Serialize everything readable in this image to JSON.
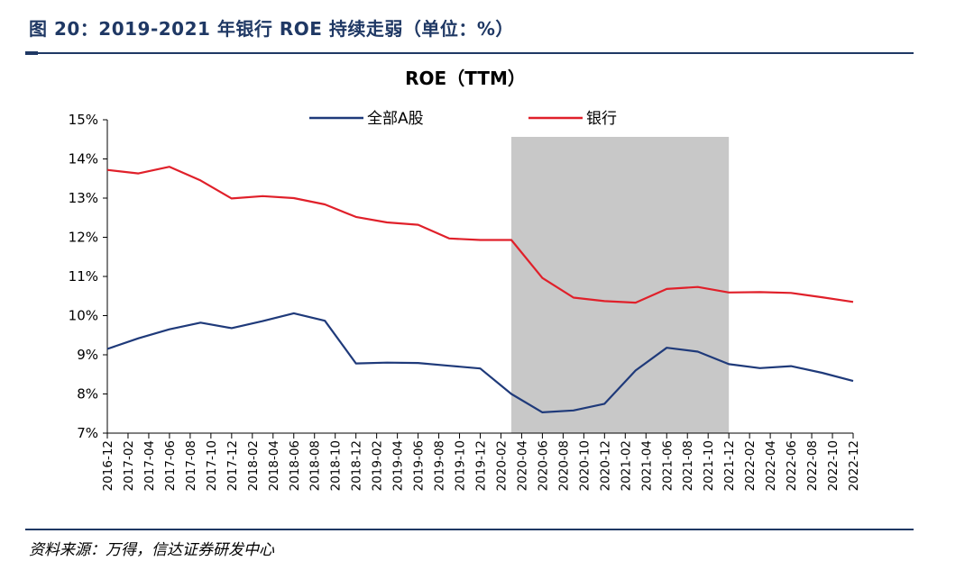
{
  "figure_title": "图 20：2019-2021 年银行 ROE 持续走弱（单位：%）",
  "source_note": "资料来源：万得，信达证券研发中心",
  "chart_data": {
    "type": "line",
    "title": "ROE（TTM）",
    "xlabel": "",
    "ylabel": "",
    "ylim": [
      7,
      15
    ],
    "y_ticks": [
      "7%",
      "8%",
      "9%",
      "10%",
      "11%",
      "12%",
      "13%",
      "14%",
      "15%"
    ],
    "legend_position": "top",
    "grid": false,
    "shaded_region": {
      "from": "2020-03",
      "to": "2021-12",
      "color": "#c8c8c8"
    },
    "x_tick_labels": [
      "2016-12",
      "2017-02",
      "2017-04",
      "2017-06",
      "2017-08",
      "2017-10",
      "2017-12",
      "2018-02",
      "2018-04",
      "2018-06",
      "2018-08",
      "2018-10",
      "2018-12",
      "2019-02",
      "2019-04",
      "2019-06",
      "2019-08",
      "2019-10",
      "2019-12",
      "2020-02",
      "2020-04",
      "2020-06",
      "2020-08",
      "2020-10",
      "2020-12",
      "2021-02",
      "2021-04",
      "2021-06",
      "2021-08",
      "2021-10",
      "2021-12",
      "2022-02",
      "2022-04",
      "2022-06",
      "2022-08",
      "2022-10",
      "2022-12"
    ],
    "x": [
      "2016-12",
      "2017-03",
      "2017-06",
      "2017-09",
      "2017-12",
      "2018-03",
      "2018-06",
      "2018-09",
      "2018-12",
      "2019-03",
      "2019-06",
      "2019-09",
      "2019-12",
      "2020-03",
      "2020-06",
      "2020-09",
      "2020-12",
      "2021-03",
      "2021-06",
      "2021-09",
      "2021-12",
      "2022-03",
      "2022-06",
      "2022-09",
      "2022-12"
    ],
    "series": [
      {
        "name": "全部A股",
        "color": "#1f3a7a",
        "values": [
          9.15,
          9.42,
          9.65,
          9.82,
          9.68,
          9.86,
          10.06,
          9.87,
          8.78,
          8.8,
          8.79,
          8.72,
          8.65,
          8.0,
          7.53,
          7.58,
          7.75,
          8.6,
          9.18,
          9.08,
          8.76,
          8.66,
          8.71,
          8.54,
          8.33
        ]
      },
      {
        "name": "银行",
        "color": "#e0202a",
        "values": [
          13.72,
          13.63,
          13.8,
          13.45,
          12.99,
          13.05,
          13.0,
          12.84,
          12.52,
          12.38,
          12.32,
          11.97,
          11.93,
          11.93,
          10.96,
          10.46,
          10.37,
          10.33,
          10.68,
          10.73,
          10.59,
          10.6,
          10.58,
          10.47,
          10.35
        ]
      }
    ]
  }
}
